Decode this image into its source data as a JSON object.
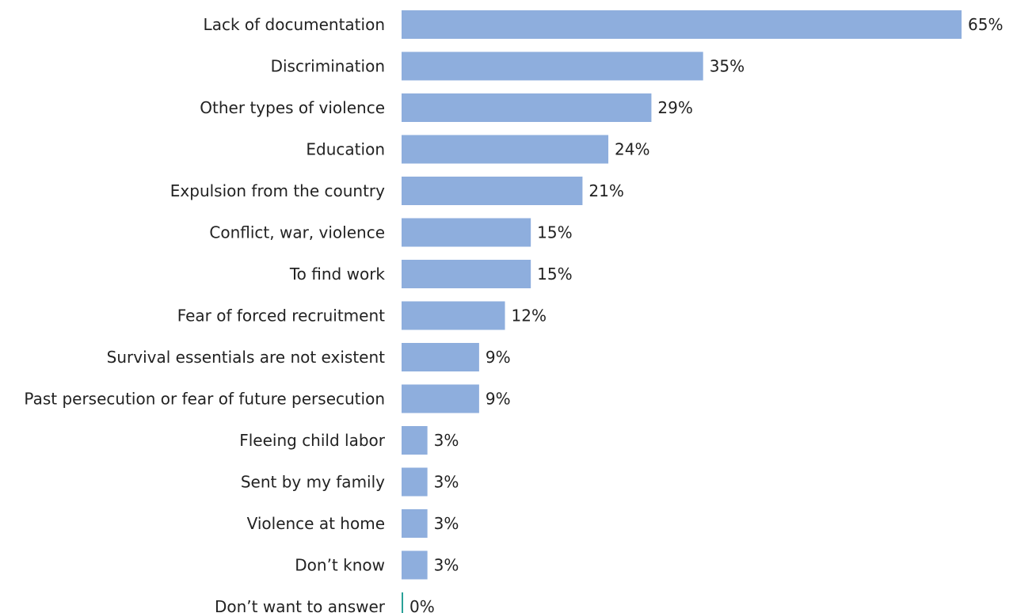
{
  "chart_data": {
    "type": "bar",
    "orientation": "horizontal",
    "categories": [
      "Lack of documentation",
      "Discrimination",
      "Other types of violence",
      "Education",
      "Expulsion from the country",
      "Conflict, war, violence",
      "To find work",
      "Fear of forced recruitment",
      "Survival essentials are not existent",
      "Past persecution or fear of future persecution",
      "Fleeing child labor",
      "Sent by my family",
      "Violence at home",
      "Don’t know",
      "Don’t want to answer"
    ],
    "values": [
      65,
      35,
      29,
      24,
      21,
      15,
      15,
      12,
      9,
      9,
      3,
      3,
      3,
      3,
      0
    ],
    "value_labels": [
      "65%",
      "35%",
      "29%",
      "24%",
      "21%",
      "15%",
      "15%",
      "12%",
      "9%",
      "9%",
      "3%",
      "3%",
      "3%",
      "3%",
      "0%"
    ],
    "xlim": [
      0,
      65
    ],
    "title": "",
    "xlabel": "",
    "ylabel": "",
    "grid": false,
    "legend": "none",
    "colors": {
      "bar": "#8eaedd",
      "zero_marker": "#2aa198",
      "text": "#222222"
    }
  }
}
